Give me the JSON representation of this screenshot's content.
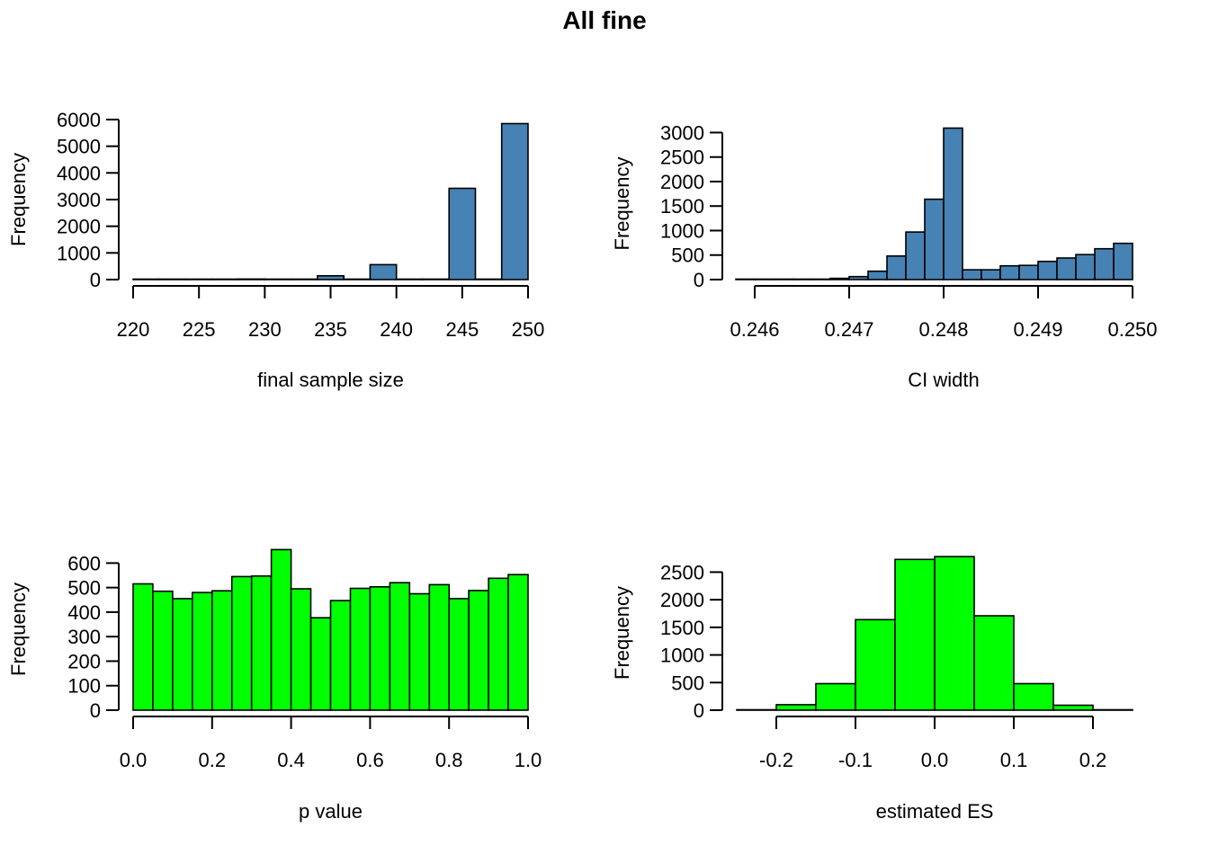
{
  "title": "All fine",
  "chart_data": [
    {
      "type": "bar",
      "subtype": "histogram",
      "color": "#4682B4",
      "xlabel": "final sample size",
      "ylabel": "Frequency",
      "x_ticks": [
        "220",
        "225",
        "230",
        "235",
        "240",
        "245",
        "250"
      ],
      "y_ticks": [
        "0",
        "1000",
        "2000",
        "3000",
        "4000",
        "5000",
        "6000"
      ],
      "xlim": [
        220,
        250
      ],
      "ylim": [
        0,
        6000
      ],
      "bins": [
        {
          "start": 220,
          "end": 222,
          "value": 2
        },
        {
          "start": 222,
          "end": 224,
          "value": 3
        },
        {
          "start": 224,
          "end": 226,
          "value": 5
        },
        {
          "start": 226,
          "end": 228,
          "value": 3
        },
        {
          "start": 228,
          "end": 230,
          "value": 20
        },
        {
          "start": 230,
          "end": 232,
          "value": 5
        },
        {
          "start": 232,
          "end": 234,
          "value": 10
        },
        {
          "start": 234,
          "end": 236,
          "value": 140
        },
        {
          "start": 236,
          "end": 238,
          "value": 10
        },
        {
          "start": 238,
          "end": 240,
          "value": 560
        },
        {
          "start": 240,
          "end": 242,
          "value": 5
        },
        {
          "start": 242,
          "end": 244,
          "value": 5
        },
        {
          "start": 244,
          "end": 246,
          "value": 3420
        },
        {
          "start": 246,
          "end": 248,
          "value": 5
        },
        {
          "start": 248,
          "end": 250,
          "value": 5850
        }
      ]
    },
    {
      "type": "bar",
      "subtype": "histogram",
      "color": "#4682B4",
      "xlabel": "CI width",
      "ylabel": "Frequency",
      "x_ticks": [
        "0.246",
        "0.247",
        "0.248",
        "0.249",
        "0.250"
      ],
      "y_ticks": [
        "0",
        "500",
        "1000",
        "1500",
        "2000",
        "2500",
        "3000"
      ],
      "xlim": [
        0.2458,
        0.25
      ],
      "ylim": [
        0,
        3100
      ],
      "bins": [
        {
          "start": 0.2458,
          "end": 0.246,
          "value": 2
        },
        {
          "start": 0.246,
          "end": 0.2462,
          "value": 3
        },
        {
          "start": 0.2462,
          "end": 0.2464,
          "value": 4
        },
        {
          "start": 0.2464,
          "end": 0.2466,
          "value": 6
        },
        {
          "start": 0.2466,
          "end": 0.2468,
          "value": 10
        },
        {
          "start": 0.2468,
          "end": 0.247,
          "value": 25
        },
        {
          "start": 0.247,
          "end": 0.2472,
          "value": 60
        },
        {
          "start": 0.2472,
          "end": 0.2474,
          "value": 170
        },
        {
          "start": 0.2474,
          "end": 0.2476,
          "value": 480
        },
        {
          "start": 0.2476,
          "end": 0.2478,
          "value": 970
        },
        {
          "start": 0.2478,
          "end": 0.248,
          "value": 1640
        },
        {
          "start": 0.248,
          "end": 0.2482,
          "value": 3090
        },
        {
          "start": 0.2482,
          "end": 0.2484,
          "value": 200
        },
        {
          "start": 0.2484,
          "end": 0.2486,
          "value": 200
        },
        {
          "start": 0.2486,
          "end": 0.2488,
          "value": 280
        },
        {
          "start": 0.2488,
          "end": 0.249,
          "value": 290
        },
        {
          "start": 0.249,
          "end": 0.2492,
          "value": 370
        },
        {
          "start": 0.2492,
          "end": 0.2494,
          "value": 440
        },
        {
          "start": 0.2494,
          "end": 0.2496,
          "value": 510
        },
        {
          "start": 0.2496,
          "end": 0.2498,
          "value": 630
        },
        {
          "start": 0.2498,
          "end": 0.25,
          "value": 740
        }
      ]
    },
    {
      "type": "bar",
      "subtype": "histogram",
      "color": "#00FF00",
      "xlabel": "p value",
      "ylabel": "Frequency",
      "x_ticks": [
        "0.0",
        "0.2",
        "0.4",
        "0.6",
        "0.8",
        "1.0"
      ],
      "y_ticks": [
        "0",
        "100",
        "200",
        "300",
        "400",
        "500",
        "600"
      ],
      "xlim": [
        0,
        1
      ],
      "ylim": [
        0,
        660
      ],
      "bins": [
        {
          "start": 0.0,
          "end": 0.05,
          "value": 515
        },
        {
          "start": 0.05,
          "end": 0.1,
          "value": 485
        },
        {
          "start": 0.1,
          "end": 0.15,
          "value": 455
        },
        {
          "start": 0.15,
          "end": 0.2,
          "value": 480
        },
        {
          "start": 0.2,
          "end": 0.25,
          "value": 487
        },
        {
          "start": 0.25,
          "end": 0.3,
          "value": 545
        },
        {
          "start": 0.3,
          "end": 0.35,
          "value": 547
        },
        {
          "start": 0.35,
          "end": 0.4,
          "value": 655
        },
        {
          "start": 0.4,
          "end": 0.45,
          "value": 495
        },
        {
          "start": 0.45,
          "end": 0.5,
          "value": 377
        },
        {
          "start": 0.5,
          "end": 0.55,
          "value": 447
        },
        {
          "start": 0.55,
          "end": 0.6,
          "value": 497
        },
        {
          "start": 0.6,
          "end": 0.65,
          "value": 503
        },
        {
          "start": 0.65,
          "end": 0.7,
          "value": 520
        },
        {
          "start": 0.7,
          "end": 0.75,
          "value": 475
        },
        {
          "start": 0.75,
          "end": 0.8,
          "value": 512
        },
        {
          "start": 0.8,
          "end": 0.85,
          "value": 455
        },
        {
          "start": 0.85,
          "end": 0.9,
          "value": 488
        },
        {
          "start": 0.9,
          "end": 0.95,
          "value": 538
        },
        {
          "start": 0.95,
          "end": 1.0,
          "value": 553
        }
      ]
    },
    {
      "type": "bar",
      "subtype": "histogram",
      "color": "#00FF00",
      "xlabel": "estimated ES",
      "ylabel": "Frequency",
      "x_ticks": [
        "-0.2",
        "-0.1",
        "0.0",
        "0.1",
        "0.2"
      ],
      "y_ticks": [
        "0",
        "500",
        "1000",
        "1500",
        "2000",
        "2500"
      ],
      "xlim": [
        -0.25,
        0.25
      ],
      "ylim": [
        0,
        2800
      ],
      "bins": [
        {
          "start": -0.25,
          "end": -0.2,
          "value": 5
        },
        {
          "start": -0.2,
          "end": -0.15,
          "value": 100
        },
        {
          "start": -0.15,
          "end": -0.1,
          "value": 480
        },
        {
          "start": -0.1,
          "end": -0.05,
          "value": 1640
        },
        {
          "start": -0.05,
          "end": 0.0,
          "value": 2730
        },
        {
          "start": 0.0,
          "end": 0.05,
          "value": 2780
        },
        {
          "start": 0.05,
          "end": 0.1,
          "value": 1710
        },
        {
          "start": 0.1,
          "end": 0.15,
          "value": 480
        },
        {
          "start": 0.15,
          "end": 0.2,
          "value": 90
        },
        {
          "start": 0.2,
          "end": 0.25,
          "value": 5
        }
      ]
    }
  ]
}
